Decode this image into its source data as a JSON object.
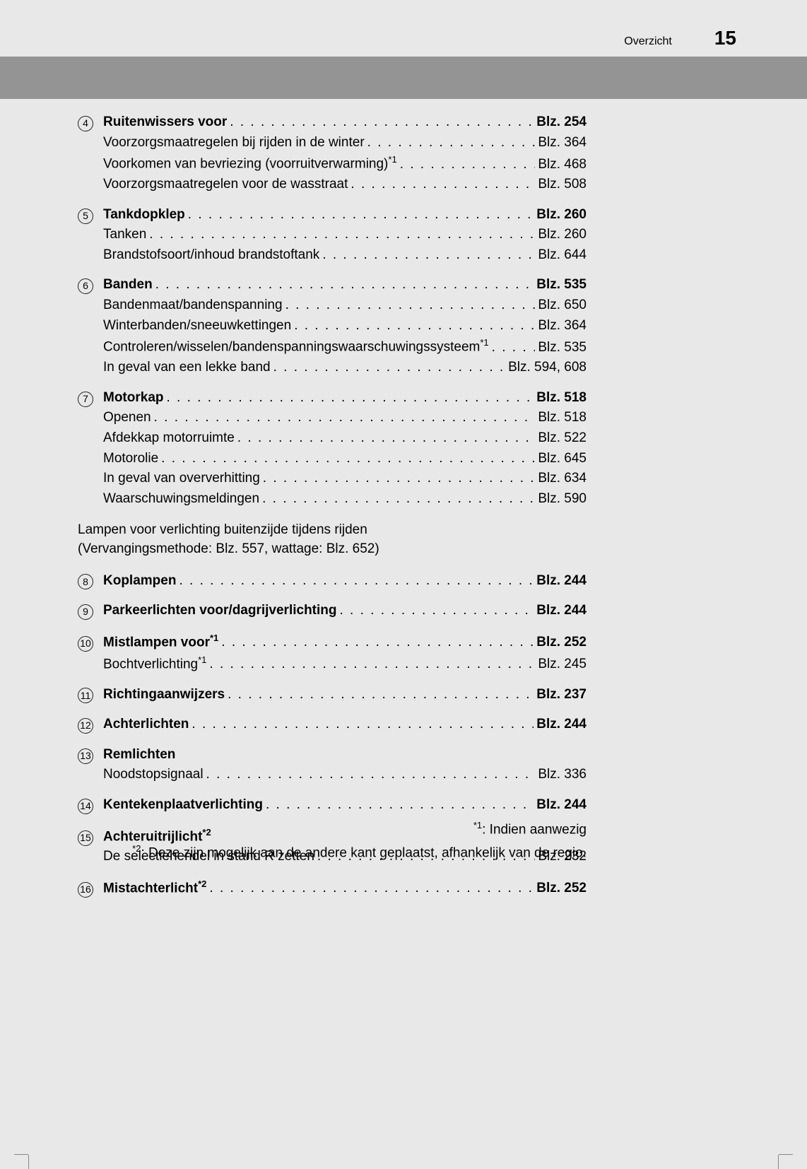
{
  "header": {
    "title": "Overzicht",
    "page_number": "15"
  },
  "sections": [
    {
      "marker": "4",
      "items": [
        {
          "label": "Ruitenwissers voor",
          "page": "Blz. 254",
          "bold": true
        },
        {
          "label": "Voorzorgsmaatregelen bij rijden in de winter",
          "page": "Blz. 364"
        },
        {
          "label_html": "Voorkomen van bevriezing (voorruitverwarming)<sup>*1</sup>",
          "page": "Blz. 468"
        },
        {
          "label": "Voorzorgsmaatregelen voor de wasstraat",
          "page": "Blz. 508"
        }
      ]
    },
    {
      "marker": "5",
      "items": [
        {
          "label": "Tankdopklep",
          "page": "Blz. 260",
          "bold": true
        },
        {
          "label": "Tanken",
          "page": "Blz. 260"
        },
        {
          "label": "Brandstofsoort/inhoud brandstoftank",
          "page": "Blz. 644"
        }
      ]
    },
    {
      "marker": "6",
      "items": [
        {
          "label": "Banden",
          "page": "Blz. 535",
          "bold": true
        },
        {
          "label": "Bandenmaat/bandenspanning",
          "page": "Blz. 650"
        },
        {
          "label": "Winterbanden/sneeuwkettingen",
          "page": "Blz. 364"
        },
        {
          "label_html": "Controleren/wisselen/bandenspanningswaarschuwingssysteem<sup>*1</sup>",
          "page": "Blz. 535"
        },
        {
          "label": "In geval van een lekke band",
          "page": "Blz. 594, 608"
        }
      ]
    },
    {
      "marker": "7",
      "items": [
        {
          "label": "Motorkap",
          "page": "Blz. 518",
          "bold": true
        },
        {
          "label": "Openen",
          "page": "Blz. 518"
        },
        {
          "label": "Afdekkap motorruimte",
          "page": "Blz. 522"
        },
        {
          "label": "Motorolie",
          "page": "Blz. 645"
        },
        {
          "label": "In geval van oververhitting",
          "page": "Blz. 634"
        },
        {
          "label": "Waarschuwingsmeldingen",
          "page": "Blz. 590"
        }
      ]
    }
  ],
  "intermediate": {
    "line1": "Lampen voor verlichting buitenzijde tijdens rijden",
    "line2": "(Vervangingsmethode: Blz. 557, wattage: Blz. 652)"
  },
  "sections2": [
    {
      "marker": "8",
      "items": [
        {
          "label": "Koplampen",
          "page": "Blz. 244",
          "bold": true
        }
      ]
    },
    {
      "marker": "9",
      "items": [
        {
          "label": "Parkeerlichten voor/dagrijverlichting",
          "page": "Blz. 244",
          "bold": true
        }
      ]
    },
    {
      "marker": "10",
      "items": [
        {
          "label_html": "Mistlampen voor<sup>*1</sup>",
          "page": "Blz. 252",
          "bold": true
        },
        {
          "label_html": "Bochtverlichting<sup>*1</sup>",
          "page": "Blz. 245"
        }
      ]
    },
    {
      "marker": "11",
      "items": [
        {
          "label": "Richtingaanwijzers",
          "page": "Blz. 237",
          "bold": true
        }
      ]
    },
    {
      "marker": "12",
      "items": [
        {
          "label": "Achterlichten",
          "page": "Blz. 244",
          "bold": true
        }
      ]
    },
    {
      "marker": "13",
      "items": [
        {
          "label": "Remlichten",
          "page": "",
          "bold": true,
          "no_dots": true
        },
        {
          "label": "Noodstopsignaal",
          "page": "Blz. 336"
        }
      ]
    },
    {
      "marker": "14",
      "items": [
        {
          "label": "Kentekenplaatverlichting",
          "page": "Blz. 244",
          "bold": true
        }
      ]
    },
    {
      "marker": "15",
      "items": [
        {
          "label_html": "Achteruitrijlicht<sup>*2</sup>",
          "page": "",
          "bold": true,
          "no_dots": true
        },
        {
          "label": "De selectiehendel in stand R zetten",
          "page": "Blz. 232"
        }
      ]
    },
    {
      "marker": "16",
      "items": [
        {
          "label_html": "Mistachterlicht<sup>*2</sup>",
          "page": "Blz. 252",
          "bold": true
        }
      ]
    }
  ],
  "footnotes": {
    "fn1_html": "<sup>*1</sup>: Indien aanwezig",
    "fn2_html": "<sup>*2</sup>: Deze zijn mogelijk aan de andere kant geplaatst, afhankelijk van de regio."
  }
}
